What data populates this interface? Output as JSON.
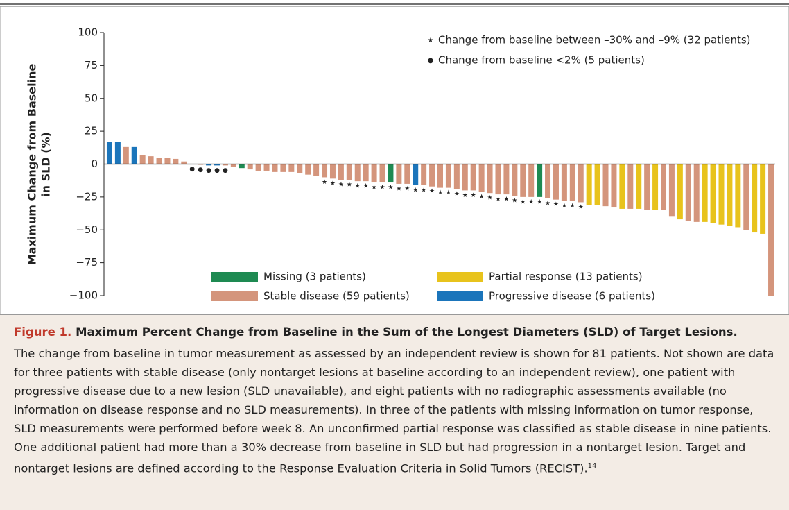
{
  "chart_data": {
    "type": "bar",
    "ylabel": [
      "Maximum Change from Baseline",
      "in SLD (%)"
    ],
    "ylim": [
      -100,
      100
    ],
    "yticks": [
      {
        "value": -100,
        "label": "−100"
      },
      {
        "value": -75,
        "label": "−75"
      },
      {
        "value": -50,
        "label": "−50"
      },
      {
        "value": -25,
        "label": "−25"
      },
      0,
      25,
      50,
      75,
      100
    ],
    "values": [
      17,
      17,
      13,
      13,
      7,
      6,
      5,
      5,
      4,
      2,
      0,
      -0.5,
      -1,
      -1,
      -1,
      -2,
      -3,
      -4,
      -5,
      -5,
      -6,
      -6,
      -6,
      -7,
      -8,
      -9,
      -10,
      -11,
      -12,
      -12,
      -13,
      -13,
      -14,
      -14,
      -14,
      -15,
      -15,
      -16,
      -16,
      -17,
      -18,
      -18,
      -19,
      -20,
      -20,
      -21,
      -22,
      -23,
      -23,
      -24,
      -25,
      -25,
      -25,
      -26,
      -27,
      -28,
      -28,
      -29,
      -31,
      -31,
      -32,
      -33,
      -34,
      -34,
      -34,
      -35,
      -35,
      -35,
      -40,
      -42,
      -43,
      -44,
      -44,
      -45,
      -46,
      -47,
      -48,
      -50,
      -52,
      -53,
      -100
    ],
    "colors": [
      "#1b75bb",
      "#1b75bb",
      "#d4957c",
      "#1b75bb",
      "#d4957c",
      "#d4957c",
      "#d4957c",
      "#d4957c",
      "#d4957c",
      "#d4957c",
      "#d4957c",
      "#d4957c",
      "#1b75bb",
      "#1b75bb",
      "#d4957c",
      "#d4957c",
      "#1e8a52",
      "#d4957c",
      "#d4957c",
      "#d4957c",
      "#d4957c",
      "#d4957c",
      "#d4957c",
      "#d4957c",
      "#d4957c",
      "#d4957c",
      "#d4957c",
      "#d4957c",
      "#d4957c",
      "#d4957c",
      "#d4957c",
      "#d4957c",
      "#d4957c",
      "#d4957c",
      "#1e8a52",
      "#d4957c",
      "#d4957c",
      "#1b75bb",
      "#d4957c",
      "#d4957c",
      "#d4957c",
      "#d4957c",
      "#d4957c",
      "#d4957c",
      "#d4957c",
      "#d4957c",
      "#d4957c",
      "#d4957c",
      "#d4957c",
      "#d4957c",
      "#d4957c",
      "#d4957c",
      "#1e8a52",
      "#d4957c",
      "#d4957c",
      "#d4957c",
      "#d4957c",
      "#d4957c",
      "#e8c31c",
      "#e8c31c",
      "#d4957c",
      "#d4957c",
      "#e8c31c",
      "#d4957c",
      "#e8c31c",
      "#d4957c",
      "#e8c31c",
      "#d4957c",
      "#d4957c",
      "#e8c31c",
      "#d4957c",
      "#d4957c",
      "#e8c31c",
      "#e8c31c",
      "#e8c31c",
      "#e8c31c",
      "#e8c31c",
      "#d4957c",
      "#e8c31c",
      "#e8c31c",
      "#d4957c"
    ],
    "markers": [
      null,
      null,
      null,
      null,
      null,
      null,
      null,
      null,
      null,
      null,
      "●",
      "●",
      "●",
      "●",
      "●",
      null,
      null,
      null,
      null,
      null,
      null,
      null,
      null,
      null,
      null,
      null,
      "★",
      "★",
      "★",
      "★",
      "★",
      "★",
      "★",
      "★",
      "★",
      "★",
      "★",
      "★",
      "★",
      "★",
      "★",
      "★",
      "★",
      "★",
      "★",
      "★",
      "★",
      "★",
      "★",
      "★",
      "★",
      "★",
      "★",
      "★",
      "★",
      "★",
      "★",
      "★",
      null,
      null,
      null,
      null,
      null,
      null,
      null,
      null,
      null,
      null,
      null,
      null,
      null,
      null,
      null,
      null,
      null,
      null,
      null,
      null,
      null,
      null,
      null
    ],
    "annotations": [
      {
        "symbol": "★",
        "text": "Change from baseline between –30% and –9% (32 patients)"
      },
      {
        "symbol": "●",
        "text": "Change from baseline <2% (5 patients)"
      }
    ],
    "legend": [
      {
        "name": "Missing (3 patients)",
        "color": "#1e8a52"
      },
      {
        "name": "Partial response (13 patients)",
        "color": "#e8c31c"
      },
      {
        "name": "Stable disease (59 patients)",
        "color": "#d4957c"
      },
      {
        "name": "Progressive disease (6 patients)",
        "color": "#1b75bb"
      }
    ]
  },
  "caption": {
    "label": "Figure 1.",
    "title": "Maximum Percent Change from Baseline in the Sum of the Longest Diameters (SLD) of Target Lesions.",
    "body": "The change from baseline in tumor measurement as assessed by an independent review is shown for 81 patients. Not shown are data for three patients with stable disease (only nontarget lesions at baseline according to an independent review), one patient with progressive disease due to a new lesion (SLD unavailable), and eight patients with no radiographic assessments available (no information on disease response and no SLD measurements). In three of the patients with missing information on tumor response, SLD measurements were performed before week 8. An unconfirmed partial response was classified as stable disease in nine patients. One additional patient had more than a 30% decrease from baseline in SLD but had progression in a nontarget lesion. Target and nontarget lesions are defined according to the Response Evaluation Criteria in Solid Tumors (RECIST).",
    "ref": "14"
  }
}
